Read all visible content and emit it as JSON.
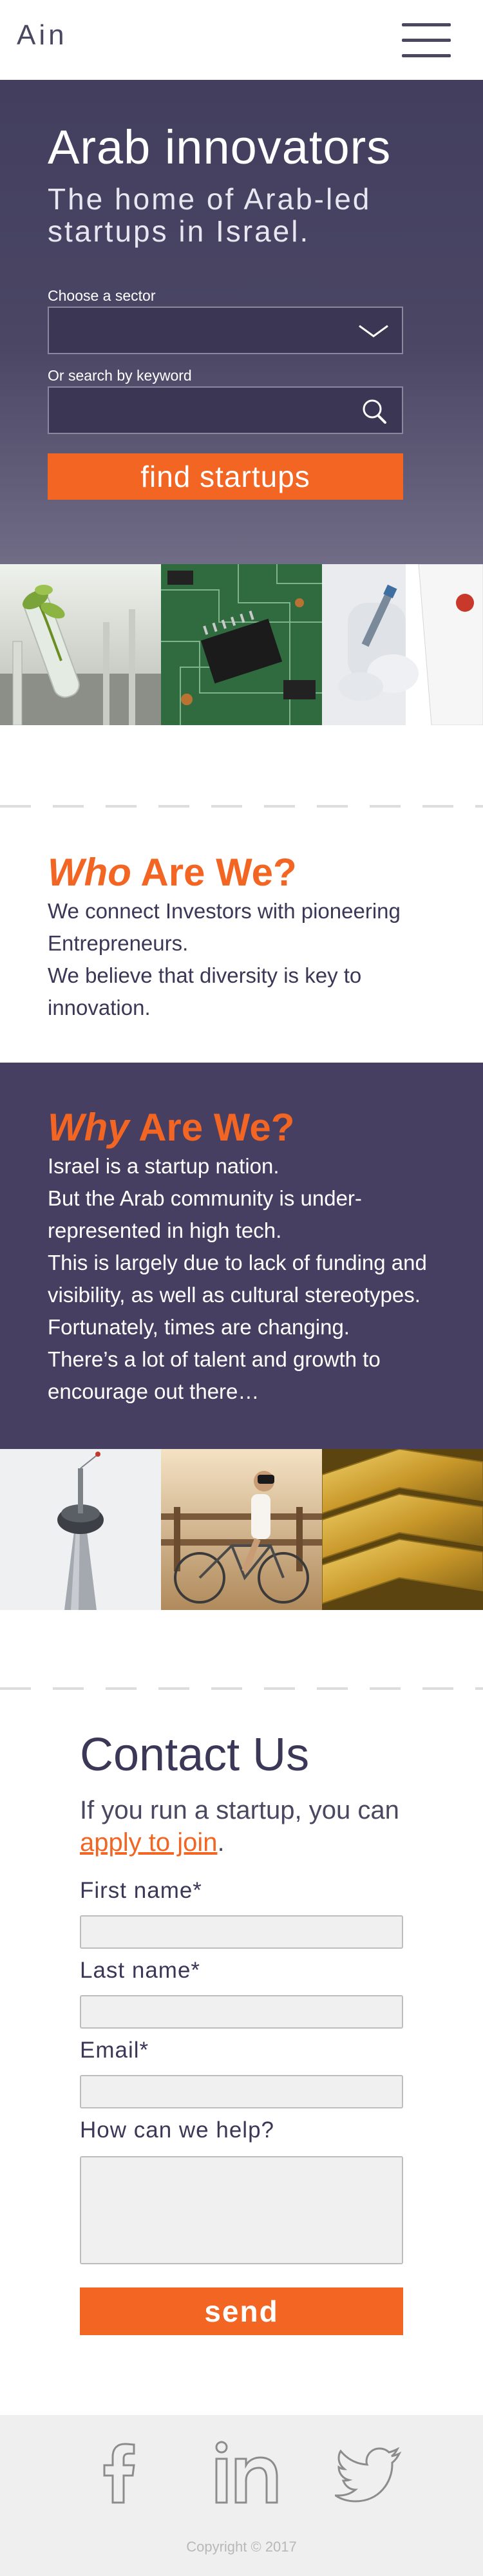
{
  "header": {
    "logo": "Ain",
    "menu_icon": "hamburger-menu-icon"
  },
  "hero": {
    "title": "Arab innovators",
    "subtitle": "The home of Arab-led startups in Israel.",
    "sector_label": "Choose a sector",
    "sector_value": "",
    "keyword_label": "Or search by keyword",
    "keyword_value": "",
    "search_button": "find startups"
  },
  "strip_top": {
    "images": [
      "plant-seedling-in-test-tube",
      "circuit-board",
      "lab-technician-with-pipette"
    ]
  },
  "who": {
    "title_em": "Who",
    "title_rest": " Are We?",
    "lines": [
      "We connect Investors with pioneering Entrepreneurs.",
      "We believe that diversity is key to innovation."
    ]
  },
  "why": {
    "title_em": "Why",
    "title_rest": " Are We?",
    "lines": [
      "Israel is a startup nation.",
      "But the Arab community is under-represented in high tech.",
      "This is largely due to lack of funding and visibility, as well as cultural stereotypes.",
      "Fortunately, times are changing.",
      "There’s a lot of talent and growth to encourage out there…"
    ]
  },
  "strip_bottom": {
    "images": [
      "tv-tower",
      "woman-with-vr-headset-on-bicycle",
      "gold-bars"
    ]
  },
  "contact": {
    "title": "Contact Us",
    "intro_text": "If you run a startup, you can ",
    "intro_link": "apply to join",
    "intro_end": ".",
    "first_name_label": "First name*",
    "last_name_label": "Last name*",
    "email_label": "Email*",
    "help_label": "How can we help?",
    "send_button": "send"
  },
  "footer": {
    "social_icons": [
      "facebook-icon",
      "linkedin-icon",
      "twitter-icon"
    ],
    "copyright": "Copyright © 2017"
  },
  "colors": {
    "accent": "#f26522",
    "brand_dark": "#463f62",
    "text": "#3b3757"
  }
}
